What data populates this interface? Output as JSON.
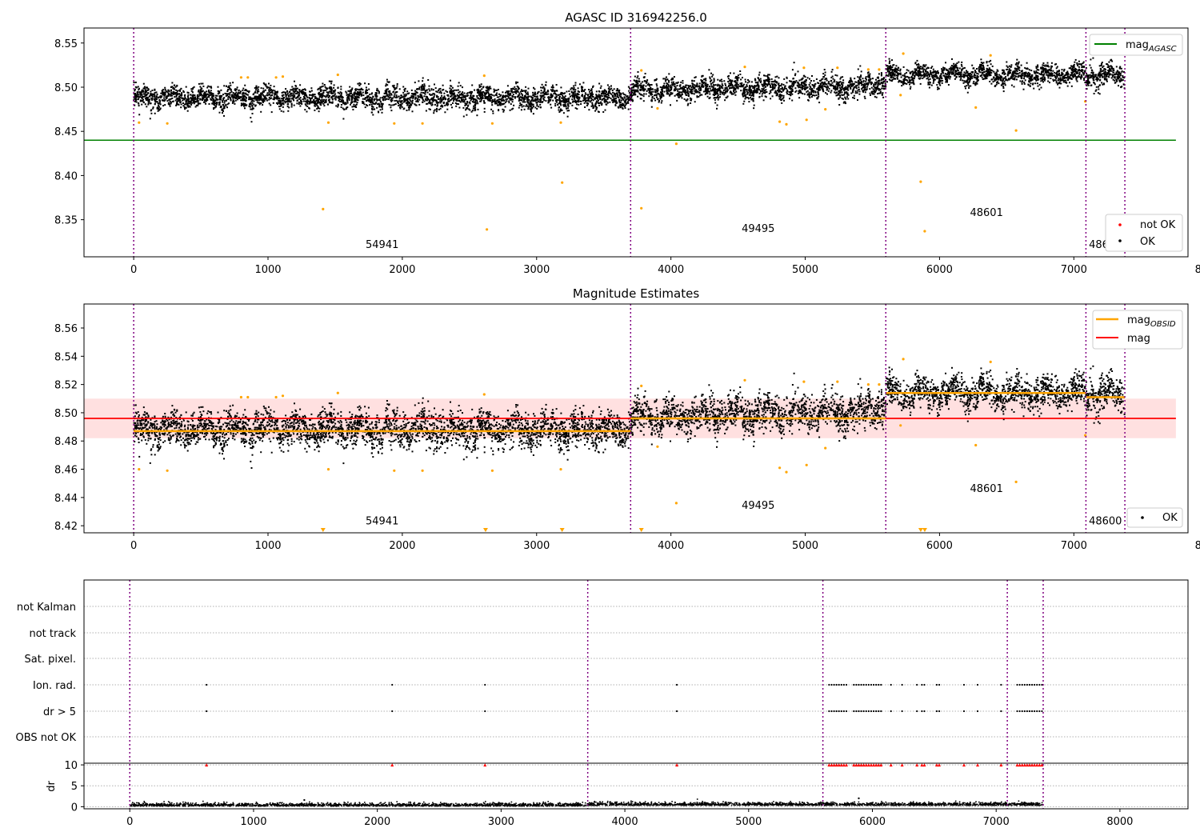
{
  "chart_data": [
    {
      "type": "scatter",
      "title": "AGASC ID 316942256.0",
      "xlim": [
        -370,
        7850
      ],
      "ylim": [
        8.308,
        8.567
      ],
      "xticks": [
        0,
        1000,
        2000,
        3000,
        4000,
        5000,
        6000,
        7000,
        8000
      ],
      "xticklabels": [
        "0",
        "1000",
        "2000",
        "3000",
        "4000",
        "5000",
        "6000",
        "7000",
        "8000"
      ],
      "yticks": [
        8.35,
        8.4,
        8.45,
        8.5,
        8.55
      ],
      "yticklabels": [
        "8.35",
        "8.40",
        "8.45",
        "8.50",
        "8.55"
      ],
      "obsid_boundaries": [
        0,
        3700,
        5600,
        7090,
        7380
      ],
      "obsid_labels": [
        {
          "text": "54941",
          "x": 1850,
          "y": 8.318
        },
        {
          "text": "49495",
          "x": 4650,
          "y": 8.336
        },
        {
          "text": "48601",
          "x": 6350,
          "y": 8.354
        },
        {
          "text": "48600",
          "x": 7235,
          "y": 8.318
        }
      ],
      "agasc_mag": {
        "value": 8.44,
        "x_range": [
          -370,
          7760
        ],
        "color": "#008000"
      },
      "segments": [
        {
          "x_range": [
            0,
            3700
          ],
          "mean": 8.488,
          "spread": 0.008
        },
        {
          "x_range": [
            3700,
            5600
          ],
          "mean": 8.497,
          "spread": 0.008
        },
        {
          "x_range": [
            5600,
            7090
          ],
          "mean": 8.514,
          "spread": 0.007
        },
        {
          "x_range": [
            7090,
            7380
          ],
          "mean": 8.513,
          "spread": 0.008
        }
      ],
      "outliers": [
        {
          "x": 40,
          "y": 8.46
        },
        {
          "x": 250,
          "y": 8.459
        },
        {
          "x": 800,
          "y": 8.511
        },
        {
          "x": 850,
          "y": 8.511
        },
        {
          "x": 1060,
          "y": 8.511
        },
        {
          "x": 1110,
          "y": 8.512
        },
        {
          "x": 1410,
          "y": 8.362
        },
        {
          "x": 1450,
          "y": 8.46
        },
        {
          "x": 1520,
          "y": 8.514
        },
        {
          "x": 1940,
          "y": 8.459
        },
        {
          "x": 2150,
          "y": 8.459
        },
        {
          "x": 2610,
          "y": 8.513
        },
        {
          "x": 2630,
          "y": 8.339
        },
        {
          "x": 2670,
          "y": 8.459
        },
        {
          "x": 3180,
          "y": 8.46
        },
        {
          "x": 3190,
          "y": 8.392
        },
        {
          "x": 3780,
          "y": 8.363
        },
        {
          "x": 3780,
          "y": 8.519
        },
        {
          "x": 3900,
          "y": 8.476
        },
        {
          "x": 4040,
          "y": 8.436
        },
        {
          "x": 4550,
          "y": 8.523
        },
        {
          "x": 4810,
          "y": 8.461
        },
        {
          "x": 4860,
          "y": 8.458
        },
        {
          "x": 4990,
          "y": 8.522
        },
        {
          "x": 5010,
          "y": 8.463
        },
        {
          "x": 5150,
          "y": 8.475
        },
        {
          "x": 5240,
          "y": 8.522
        },
        {
          "x": 5470,
          "y": 8.52
        },
        {
          "x": 5550,
          "y": 8.52
        },
        {
          "x": 5710,
          "y": 8.491
        },
        {
          "x": 5730,
          "y": 8.538
        },
        {
          "x": 5860,
          "y": 8.393
        },
        {
          "x": 5890,
          "y": 8.337
        },
        {
          "x": 6270,
          "y": 8.477
        },
        {
          "x": 6380,
          "y": 8.536
        },
        {
          "x": 6570,
          "y": 8.451
        },
        {
          "x": 7085,
          "y": 8.484
        }
      ],
      "legend_upper": {
        "entries": [
          {
            "label": "mag",
            "sub": "AGASC",
            "color": "#008000"
          }
        ],
        "loc": "upper right"
      },
      "legend_lower": {
        "entries": [
          {
            "label": "not OK",
            "color": "#ff0000"
          },
          {
            "label": "OK",
            "color": "#000000"
          }
        ],
        "loc": "lower right"
      },
      "colors": {
        "ok": "#000000",
        "outlier": "#ffa500",
        "boundary": "#800080"
      }
    },
    {
      "type": "scatter",
      "title": "Magnitude Estimates",
      "xlim": [
        -370,
        7850
      ],
      "ylim": [
        8.415,
        8.577
      ],
      "xticks": [
        0,
        1000,
        2000,
        3000,
        4000,
        5000,
        6000,
        7000,
        8000
      ],
      "xticklabels": [
        "0",
        "1000",
        "2000",
        "3000",
        "4000",
        "5000",
        "6000",
        "7000",
        "8000"
      ],
      "yticks": [
        8.42,
        8.44,
        8.46,
        8.48,
        8.5,
        8.52,
        8.54,
        8.56
      ],
      "yticklabels": [
        "8.42",
        "8.44",
        "8.46",
        "8.48",
        "8.50",
        "8.52",
        "8.54",
        "8.56"
      ],
      "obsid_labels": [
        {
          "text": "54941",
          "x": 1850,
          "y": 8.421
        },
        {
          "text": "49495",
          "x": 4650,
          "y": 8.432
        },
        {
          "text": "48601",
          "x": 6350,
          "y": 8.444
        },
        {
          "text": "48600",
          "x": 7235,
          "y": 8.421
        }
      ],
      "mag_line": {
        "value": 8.496,
        "band": [
          8.482,
          8.51
        ],
        "x_range": [
          -370,
          7760
        ],
        "color": "#ff0000"
      },
      "obsid_means": [
        {
          "x_range": [
            0,
            3700
          ],
          "value": 8.487
        },
        {
          "x_range": [
            3700,
            5600
          ],
          "value": 8.496
        },
        {
          "x_range": [
            5600,
            7090
          ],
          "value": 8.514
        },
        {
          "x_range": [
            7090,
            7380
          ],
          "value": 8.511
        }
      ],
      "offscale_markers_x": [
        1410,
        2620,
        3190,
        3780,
        5860,
        5890
      ],
      "legend_upper": {
        "entries": [
          {
            "label": "mag",
            "sub": "OBSID",
            "color": "#ffa500"
          },
          {
            "label": "mag",
            "color": "#ff0000"
          }
        ],
        "loc": "upper right"
      },
      "legend_lower": {
        "entries": [
          {
            "label": "OK",
            "color": "#000000"
          }
        ],
        "loc": "lower right"
      }
    },
    {
      "type": "scatter",
      "title": "",
      "xlim": [
        -370,
        8550
      ],
      "flag_rows": [
        "not Kalman",
        "not track",
        "Sat. pixel.",
        "Ion. rad.",
        "dr > 5",
        "OBS not OK"
      ],
      "flag_events_x": [
        620,
        2120,
        2870,
        4420,
        5650,
        5670,
        5690,
        5710,
        5730,
        5750,
        5770,
        5790,
        5850,
        5870,
        5890,
        5910,
        5930,
        5950,
        5970,
        5990,
        6010,
        6030,
        6050,
        6070,
        6150,
        6240,
        6360,
        6400,
        6420,
        6520,
        6540,
        6740,
        6850,
        7040,
        7170,
        7190,
        7210,
        7230,
        7250,
        7270,
        7290,
        7310,
        7330,
        7350,
        7370
      ],
      "dr_ylim": [
        -0.5,
        10.4
      ],
      "dr_yticks": [
        0,
        5,
        10
      ],
      "dr_yticklabels": [
        "0",
        "5",
        "10"
      ],
      "dr_ylabel": "dr",
      "dr_clip_value": 10,
      "xticks": [
        0,
        1000,
        2000,
        3000,
        4000,
        5000,
        6000,
        7000,
        8000
      ],
      "xticklabels": [
        "0",
        "1000",
        "2000",
        "3000",
        "4000",
        "5000",
        "6000",
        "7000",
        "8000"
      ]
    }
  ]
}
